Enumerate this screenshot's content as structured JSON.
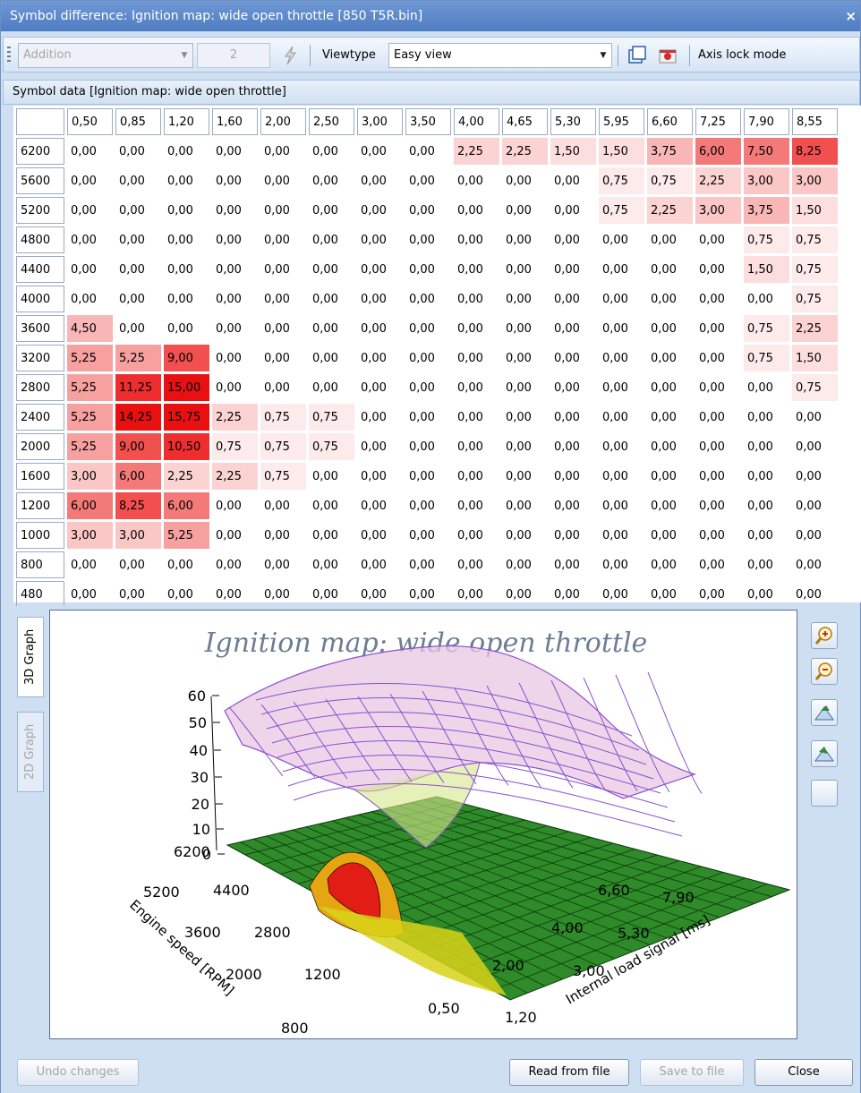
{
  "window": {
    "title": "Symbol difference: Ignition map: wide open throttle [850 T5R.bin]",
    "close_glyph": "×"
  },
  "toolbar": {
    "mode_combo": "Addition",
    "step_value": "2",
    "viewtype_label": "Viewtype",
    "viewtype_value": "Easy view",
    "axis_lock_label": "Axis lock mode",
    "icons": [
      "lightning-icon",
      "window-icon",
      "red-marker-icon"
    ]
  },
  "panel": {
    "header": "Symbol data [Ignition map: wide open throttle]"
  },
  "grid": {
    "col_headers": [
      "0,50",
      "0,85",
      "1,20",
      "1,60",
      "2,00",
      "2,50",
      "3,00",
      "3,50",
      "4,00",
      "4,65",
      "5,30",
      "5,95",
      "6,60",
      "7,25",
      "7,90",
      "8,55"
    ],
    "rows": [
      {
        "rpm": "6200",
        "cells": [
          "0,00",
          "0,00",
          "0,00",
          "0,00",
          "0,00",
          "0,00",
          "0,00",
          "0,00",
          "2,25",
          "2,25",
          "1,50",
          "1,50",
          "3,75",
          "6,00",
          "7,50",
          "8,25"
        ]
      },
      {
        "rpm": "5600",
        "cells": [
          "0,00",
          "0,00",
          "0,00",
          "0,00",
          "0,00",
          "0,00",
          "0,00",
          "0,00",
          "0,00",
          "0,00",
          "0,00",
          "0,75",
          "0,75",
          "2,25",
          "3,00",
          "3,00"
        ]
      },
      {
        "rpm": "5200",
        "cells": [
          "0,00",
          "0,00",
          "0,00",
          "0,00",
          "0,00",
          "0,00",
          "0,00",
          "0,00",
          "0,00",
          "0,00",
          "0,00",
          "0,75",
          "2,25",
          "3,00",
          "3,75",
          "1,50"
        ]
      },
      {
        "rpm": "4800",
        "cells": [
          "0,00",
          "0,00",
          "0,00",
          "0,00",
          "0,00",
          "0,00",
          "0,00",
          "0,00",
          "0,00",
          "0,00",
          "0,00",
          "0,00",
          "0,00",
          "0,00",
          "0,75",
          "0,75"
        ]
      },
      {
        "rpm": "4400",
        "cells": [
          "0,00",
          "0,00",
          "0,00",
          "0,00",
          "0,00",
          "0,00",
          "0,00",
          "0,00",
          "0,00",
          "0,00",
          "0,00",
          "0,00",
          "0,00",
          "0,00",
          "1,50",
          "0,75"
        ]
      },
      {
        "rpm": "4000",
        "cells": [
          "0,00",
          "0,00",
          "0,00",
          "0,00",
          "0,00",
          "0,00",
          "0,00",
          "0,00",
          "0,00",
          "0,00",
          "0,00",
          "0,00",
          "0,00",
          "0,00",
          "0,00",
          "0,75"
        ]
      },
      {
        "rpm": "3600",
        "cells": [
          "4,50",
          "0,00",
          "0,00",
          "0,00",
          "0,00",
          "0,00",
          "0,00",
          "0,00",
          "0,00",
          "0,00",
          "0,00",
          "0,00",
          "0,00",
          "0,00",
          "0,75",
          "2,25"
        ]
      },
      {
        "rpm": "3200",
        "cells": [
          "5,25",
          "5,25",
          "9,00",
          "0,00",
          "0,00",
          "0,00",
          "0,00",
          "0,00",
          "0,00",
          "0,00",
          "0,00",
          "0,00",
          "0,00",
          "0,00",
          "0,75",
          "1,50"
        ]
      },
      {
        "rpm": "2800",
        "cells": [
          "5,25",
          "11,25",
          "15,00",
          "0,00",
          "0,00",
          "0,00",
          "0,00",
          "0,00",
          "0,00",
          "0,00",
          "0,00",
          "0,00",
          "0,00",
          "0,00",
          "0,00",
          "0,75"
        ]
      },
      {
        "rpm": "2400",
        "cells": [
          "5,25",
          "14,25",
          "15,75",
          "2,25",
          "0,75",
          "0,75",
          "0,00",
          "0,00",
          "0,00",
          "0,00",
          "0,00",
          "0,00",
          "0,00",
          "0,00",
          "0,00",
          "0,00"
        ]
      },
      {
        "rpm": "2000",
        "cells": [
          "5,25",
          "9,00",
          "10,50",
          "0,75",
          "0,75",
          "0,75",
          "0,00",
          "0,00",
          "0,00",
          "0,00",
          "0,00",
          "0,00",
          "0,00",
          "0,00",
          "0,00",
          "0,00"
        ]
      },
      {
        "rpm": "1600",
        "cells": [
          "3,00",
          "6,00",
          "2,25",
          "2,25",
          "0,75",
          "0,00",
          "0,00",
          "0,00",
          "0,00",
          "0,00",
          "0,00",
          "0,00",
          "0,00",
          "0,00",
          "0,00",
          "0,00"
        ]
      },
      {
        "rpm": "1200",
        "cells": [
          "6,00",
          "8,25",
          "6,00",
          "0,00",
          "0,00",
          "0,00",
          "0,00",
          "0,00",
          "0,00",
          "0,00",
          "0,00",
          "0,00",
          "0,00",
          "0,00",
          "0,00",
          "0,00"
        ]
      },
      {
        "rpm": "1000",
        "cells": [
          "3,00",
          "3,00",
          "5,25",
          "0,00",
          "0,00",
          "0,00",
          "0,00",
          "0,00",
          "0,00",
          "0,00",
          "0,00",
          "0,00",
          "0,00",
          "0,00",
          "0,00",
          "0,00"
        ]
      },
      {
        "rpm": "800",
        "cells": [
          "0,00",
          "0,00",
          "0,00",
          "0,00",
          "0,00",
          "0,00",
          "0,00",
          "0,00",
          "0,00",
          "0,00",
          "0,00",
          "0,00",
          "0,00",
          "0,00",
          "0,00",
          "0,00"
        ]
      },
      {
        "rpm": "480",
        "cells": [
          "0,00",
          "0,00",
          "0,00",
          "0,00",
          "0,00",
          "0,00",
          "0,00",
          "0,00",
          "0,00",
          "0,00",
          "0,00",
          "0,00",
          "0,00",
          "0,00",
          "0,00",
          "0,00"
        ]
      }
    ]
  },
  "tabs": [
    {
      "label": "3D Graph",
      "active": true
    },
    {
      "label": "2D Graph",
      "active": false
    }
  ],
  "graph": {
    "title": "Ignition map: wide open throttle",
    "z_ticks": [
      "60",
      "50",
      "40",
      "30",
      "20",
      "10",
      "0"
    ],
    "rpm_ticks": [
      "6200",
      "5200",
      "4400",
      "3600",
      "2800",
      "2000",
      "1200",
      "800"
    ],
    "load_ticks": [
      "0,50",
      "1,20",
      "2,00",
      "3,00",
      "4,00",
      "5,30",
      "6,60",
      "7,90"
    ],
    "x_axis_label": "Engine speed [RPM]",
    "y_axis_label": "Internal load signal [ms]",
    "colors": {
      "upper_surface": "#e8c7e3",
      "upper_grid": "#8a4fd0",
      "lower_surface": "#2f8a2a",
      "hotspot": "#e21d16"
    }
  },
  "side_buttons": [
    "zoom-in-icon",
    "zoom-out-icon",
    "tilt-up-icon",
    "tilt-down-icon",
    "blank"
  ],
  "footer": {
    "undo": "Undo changes",
    "read": "Read from file",
    "save": "Save to file",
    "close": "Close"
  }
}
